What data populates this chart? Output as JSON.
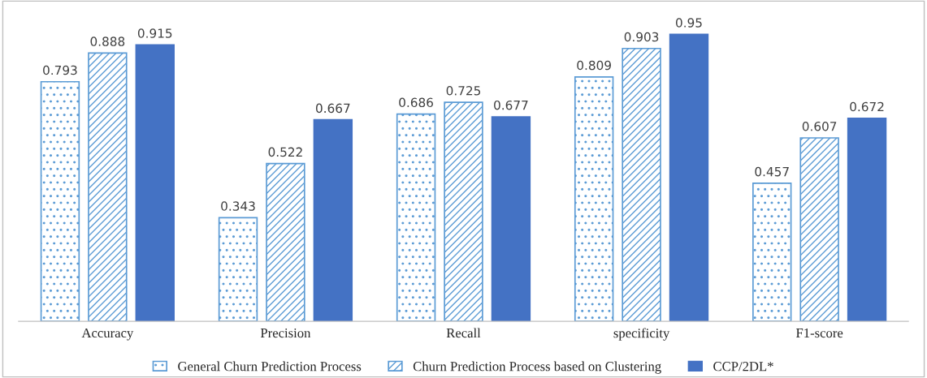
{
  "chart_data": {
    "type": "bar",
    "categories": [
      "Accuracy",
      "Precision",
      "Recall",
      "specificity",
      "F1-score"
    ],
    "series": [
      {
        "name": "General Churn Prediction Process",
        "color": "#5b9bd5",
        "values": [
          0.793,
          0.343,
          0.686,
          0.809,
          0.457
        ]
      },
      {
        "name": "Churn Prediction Process based on Clustering",
        "color": "#5b9bd5",
        "values": [
          0.888,
          0.522,
          0.725,
          0.903,
          0.607
        ]
      },
      {
        "name": "CCP/2DL*",
        "color": "#4472c4",
        "values": [
          0.915,
          0.667,
          0.677,
          0.95,
          0.672
        ]
      }
    ],
    "data_labels": true,
    "legend": "bottom",
    "grid": false
  }
}
